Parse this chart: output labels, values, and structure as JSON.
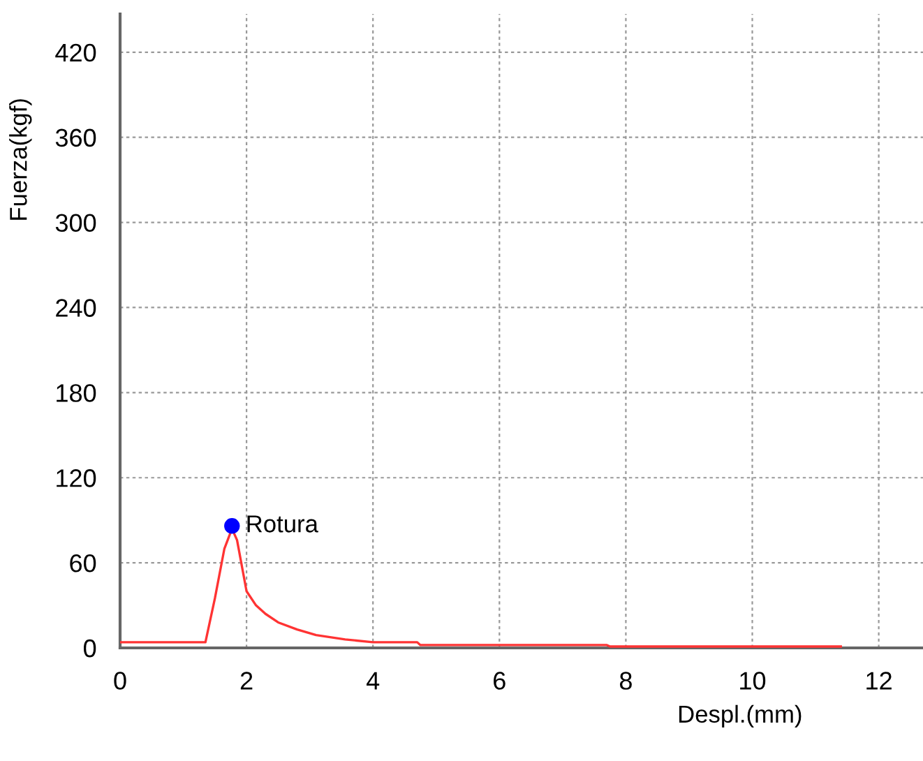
{
  "chart_data": {
    "type": "line",
    "xlabel": "Despl.(mm)",
    "ylabel": "Fuerza(kgf)",
    "series": [
      {
        "color": "#ff3333",
        "x": [
          0,
          1.35,
          1.5,
          1.65,
          1.77,
          1.85,
          2.0,
          2.15,
          2.3,
          2.5,
          2.8,
          3.1,
          3.56,
          4.0,
          4.7,
          4.75,
          7.7,
          7.75,
          11.4
        ],
        "values": [
          4,
          4,
          35,
          70,
          84,
          76,
          40,
          30,
          24,
          18,
          13,
          9,
          6,
          4,
          4,
          2,
          2,
          1,
          1
        ]
      },
      {
        "type": "scatter",
        "color": "#0000ff",
        "x": [
          1.77
        ],
        "values": [
          86
        ],
        "marker": "circle"
      }
    ],
    "annotations": [
      {
        "text": "Rotura",
        "x": 1.77,
        "y": 86
      }
    ],
    "xlim": [
      0,
      12.7
    ],
    "ylim": [
      0,
      447
    ],
    "xticks": [
      0,
      2,
      4,
      6,
      8,
      10,
      12
    ],
    "yticks": [
      0,
      60,
      120,
      180,
      240,
      300,
      360,
      420
    ],
    "grid": true,
    "marker": "none",
    "line_style": "solid"
  }
}
